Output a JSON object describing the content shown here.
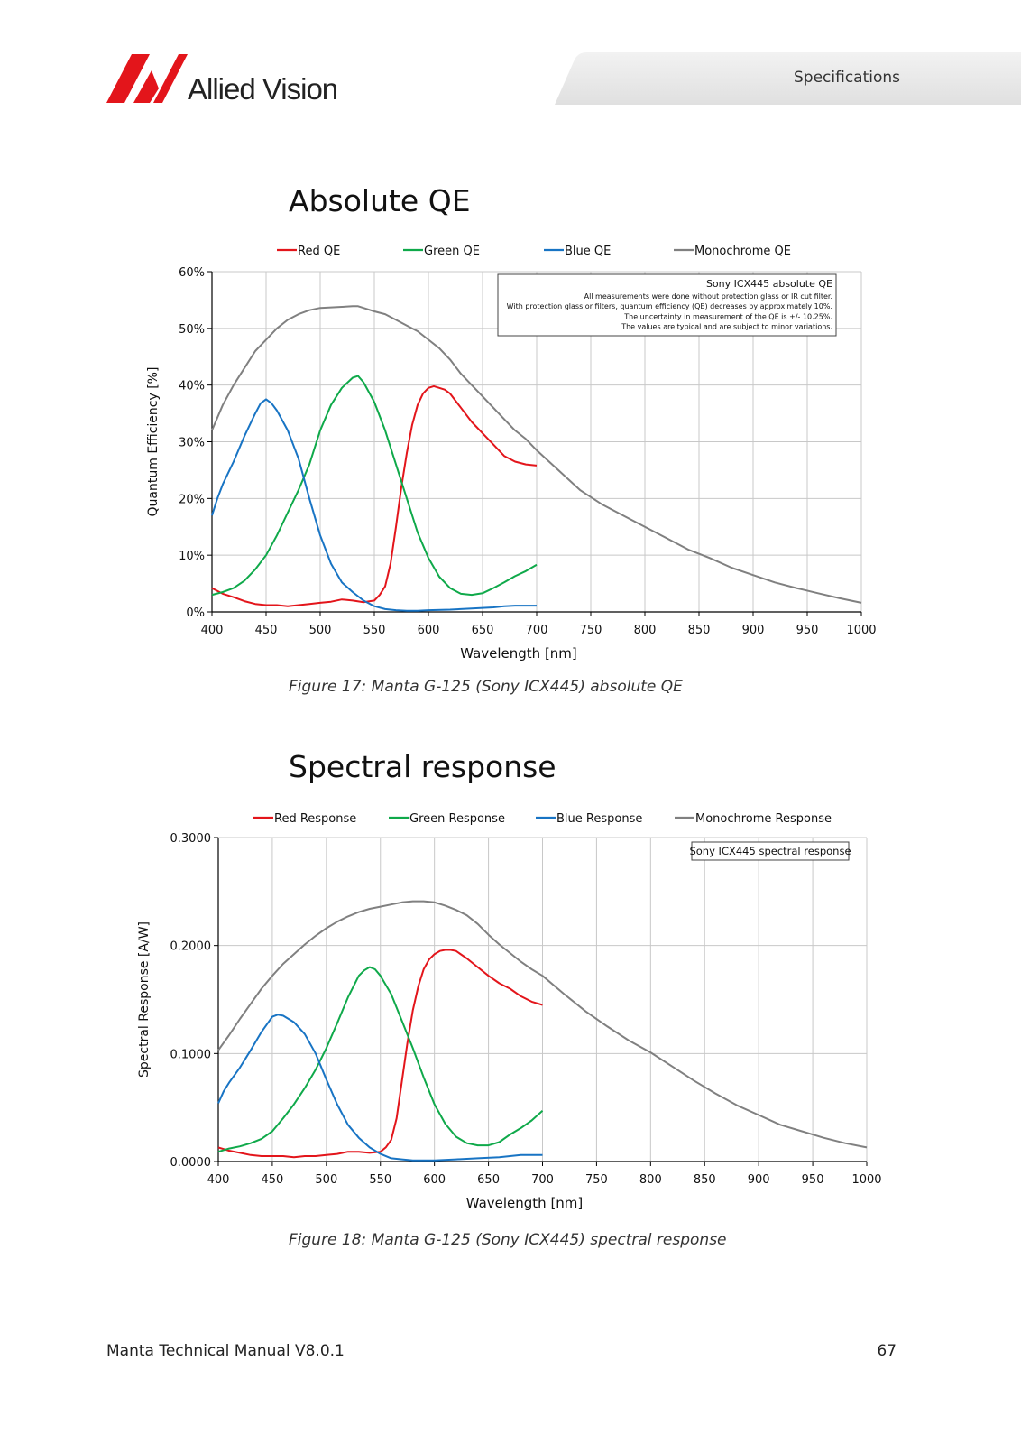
{
  "header": {
    "logo_text": "Allied Vision",
    "section_label": "Specifications",
    "brand_color": "#e3151b"
  },
  "sections": [
    {
      "heading": "Absolute QE",
      "caption": "Figure 17: Manta G-125 (Sony ICX445) absolute QE"
    },
    {
      "heading": "Spectral response",
      "caption": "Figure 18: Manta G-125 (Sony ICX445) spectral response"
    }
  ],
  "footer": {
    "left": "Manta Technical Manual V8.0.1",
    "right": "67"
  },
  "chart_data": [
    {
      "type": "line",
      "xlabel": "Wavelength [nm]",
      "ylabel": "Quantum Efficiency [%]",
      "xlim": [
        400,
        1000
      ],
      "ylim": [
        0,
        60
      ],
      "xticks": [
        "400",
        "450",
        "500",
        "550",
        "600",
        "650",
        "700",
        "750",
        "800",
        "850",
        "900",
        "950",
        "1000"
      ],
      "yticks": [
        "0%",
        "10%",
        "20%",
        "30%",
        "40%",
        "50%",
        "60%"
      ],
      "grid": true,
      "legend_placement": "top",
      "annotation": {
        "title": "Sony ICX445 absolute QE",
        "lines": [
          "All measurements were done without protection glass or IR cut filter.",
          "With protection glass or filters, quantum efficiency (QE) decreases by approximately 10%.",
          "The uncertainty in measurement of the QE is +/- 10.25%.",
          "The values are typical and are subject to minor variations."
        ]
      },
      "series": [
        {
          "name": "Red QE",
          "color": "#e3151b",
          "x": [
            400,
            410,
            420,
            430,
            440,
            450,
            460,
            470,
            480,
            490,
            500,
            510,
            520,
            530,
            540,
            550,
            555,
            560,
            565,
            570,
            575,
            580,
            585,
            590,
            595,
            600,
            605,
            610,
            615,
            620,
            630,
            640,
            650,
            660,
            670,
            680,
            690,
            700
          ],
          "y": [
            4.2,
            3.2,
            2.6,
            1.9,
            1.4,
            1.2,
            1.2,
            1.0,
            1.2,
            1.4,
            1.6,
            1.8,
            2.2,
            2.0,
            1.7,
            2.0,
            3.0,
            4.5,
            8.5,
            15,
            22,
            28,
            33,
            36.5,
            38.5,
            39.5,
            39.8,
            39.5,
            39.2,
            38.5,
            36,
            33.5,
            31.5,
            29.5,
            27.5,
            26.5,
            26,
            25.8
          ]
        },
        {
          "name": "Green QE",
          "color": "#0fa94a",
          "x": [
            400,
            410,
            420,
            430,
            440,
            450,
            460,
            470,
            480,
            490,
            500,
            510,
            520,
            530,
            535,
            540,
            550,
            560,
            570,
            580,
            590,
            600,
            610,
            620,
            630,
            640,
            650,
            660,
            670,
            680,
            690,
            700
          ],
          "y": [
            3.0,
            3.5,
            4.2,
            5.5,
            7.5,
            10,
            13.5,
            17.5,
            21.5,
            26,
            32,
            36.5,
            39.5,
            41.3,
            41.6,
            40.5,
            37,
            32,
            26,
            20,
            14,
            9.5,
            6.2,
            4.2,
            3.2,
            3.0,
            3.3,
            4.2,
            5.2,
            6.3,
            7.2,
            8.3
          ]
        },
        {
          "name": "Blue QE",
          "color": "#1874c4",
          "x": [
            400,
            405,
            410,
            420,
            430,
            440,
            445,
            450,
            455,
            460,
            470,
            480,
            490,
            500,
            510,
            520,
            530,
            540,
            550,
            560,
            570,
            580,
            590,
            600,
            620,
            640,
            660,
            670,
            680,
            700
          ],
          "y": [
            17,
            20,
            22.5,
            26.5,
            31,
            35,
            36.8,
            37.5,
            36.8,
            35.5,
            32,
            27,
            20,
            13.5,
            8.5,
            5.2,
            3.5,
            2.0,
            1.0,
            0.5,
            0.3,
            0.2,
            0.2,
            0.3,
            0.4,
            0.6,
            0.8,
            1.0,
            1.1,
            1.1
          ]
        },
        {
          "name": "Monochrome QE",
          "color": "#808080",
          "x": [
            400,
            410,
            420,
            430,
            440,
            450,
            460,
            470,
            480,
            490,
            500,
            510,
            520,
            530,
            535,
            540,
            550,
            560,
            570,
            580,
            590,
            600,
            610,
            620,
            630,
            640,
            650,
            660,
            670,
            680,
            690,
            700,
            720,
            740,
            760,
            780,
            800,
            820,
            840,
            860,
            880,
            900,
            920,
            940,
            960,
            980,
            1000
          ],
          "y": [
            32,
            36.5,
            40,
            43,
            46,
            48,
            50,
            51.5,
            52.5,
            53.2,
            53.6,
            53.7,
            53.8,
            53.9,
            53.9,
            53.6,
            53,
            52.5,
            51.5,
            50.5,
            49.5,
            48,
            46.5,
            44.5,
            42,
            40,
            38,
            36,
            34,
            32,
            30.5,
            28.5,
            25,
            21.5,
            19,
            17,
            15,
            13,
            11,
            9.5,
            7.8,
            6.5,
            5.2,
            4.2,
            3.3,
            2.4,
            1.6
          ]
        }
      ]
    },
    {
      "type": "line",
      "xlabel": "Wavelength [nm]",
      "ylabel": "Spectral Response [A/W]",
      "xlim": [
        400,
        1000
      ],
      "ylim": [
        0,
        0.3
      ],
      "xticks": [
        "400",
        "450",
        "500",
        "550",
        "600",
        "650",
        "700",
        "750",
        "800",
        "850",
        "900",
        "950",
        "1000"
      ],
      "yticks": [
        "0.0000",
        "0.1000",
        "0.2000",
        "0.3000"
      ],
      "grid": true,
      "legend_placement": "top",
      "annotation": {
        "title": "Sony ICX445 spectral response",
        "lines": []
      },
      "series": [
        {
          "name": "Red Response",
          "color": "#e3151b",
          "x": [
            400,
            410,
            420,
            430,
            440,
            450,
            460,
            470,
            480,
            490,
            500,
            510,
            520,
            530,
            540,
            550,
            555,
            560,
            565,
            570,
            575,
            580,
            585,
            590,
            595,
            600,
            605,
            610,
            615,
            620,
            630,
            640,
            650,
            660,
            670,
            680,
            690,
            700
          ],
          "y": [
            0.013,
            0.01,
            0.008,
            0.006,
            0.005,
            0.005,
            0.005,
            0.004,
            0.005,
            0.005,
            0.006,
            0.007,
            0.009,
            0.009,
            0.008,
            0.009,
            0.013,
            0.02,
            0.04,
            0.075,
            0.11,
            0.14,
            0.162,
            0.178,
            0.187,
            0.192,
            0.195,
            0.196,
            0.196,
            0.195,
            0.188,
            0.18,
            0.172,
            0.165,
            0.16,
            0.153,
            0.148,
            0.145
          ]
        },
        {
          "name": "Green Response",
          "color": "#0fa94a",
          "x": [
            400,
            410,
            420,
            430,
            440,
            450,
            460,
            470,
            480,
            490,
            500,
            510,
            520,
            530,
            535,
            540,
            545,
            550,
            560,
            570,
            580,
            590,
            600,
            610,
            620,
            630,
            640,
            650,
            660,
            670,
            680,
            690,
            700
          ],
          "y": [
            0.009,
            0.012,
            0.014,
            0.017,
            0.021,
            0.028,
            0.04,
            0.053,
            0.068,
            0.085,
            0.105,
            0.128,
            0.152,
            0.172,
            0.177,
            0.18,
            0.178,
            0.172,
            0.155,
            0.13,
            0.105,
            0.078,
            0.053,
            0.035,
            0.023,
            0.017,
            0.015,
            0.015,
            0.018,
            0.025,
            0.031,
            0.038,
            0.047
          ]
        },
        {
          "name": "Blue Response",
          "color": "#1874c4",
          "x": [
            400,
            405,
            410,
            420,
            430,
            440,
            450,
            455,
            460,
            470,
            480,
            490,
            500,
            510,
            520,
            530,
            540,
            550,
            560,
            570,
            580,
            590,
            600,
            620,
            640,
            660,
            670,
            680,
            700
          ],
          "y": [
            0.054,
            0.065,
            0.073,
            0.087,
            0.103,
            0.12,
            0.134,
            0.136,
            0.135,
            0.129,
            0.118,
            0.1,
            0.076,
            0.053,
            0.034,
            0.022,
            0.013,
            0.007,
            0.003,
            0.002,
            0.001,
            0.001,
            0.001,
            0.002,
            0.003,
            0.004,
            0.005,
            0.006,
            0.006
          ]
        },
        {
          "name": "Monochrome Response",
          "color": "#808080",
          "x": [
            400,
            410,
            420,
            430,
            440,
            450,
            460,
            470,
            480,
            490,
            500,
            510,
            520,
            530,
            540,
            550,
            560,
            570,
            580,
            590,
            600,
            610,
            620,
            630,
            640,
            650,
            660,
            670,
            680,
            690,
            700,
            720,
            740,
            760,
            780,
            800,
            820,
            840,
            860,
            880,
            900,
            920,
            940,
            960,
            980,
            1000
          ],
          "y": [
            0.103,
            0.117,
            0.132,
            0.146,
            0.16,
            0.172,
            0.183,
            0.192,
            0.201,
            0.209,
            0.216,
            0.222,
            0.227,
            0.231,
            0.234,
            0.236,
            0.238,
            0.24,
            0.241,
            0.241,
            0.24,
            0.237,
            0.233,
            0.228,
            0.22,
            0.21,
            0.201,
            0.193,
            0.185,
            0.178,
            0.172,
            0.155,
            0.139,
            0.125,
            0.112,
            0.101,
            0.088,
            0.075,
            0.063,
            0.052,
            0.043,
            0.034,
            0.028,
            0.022,
            0.017,
            0.013
          ]
        }
      ]
    }
  ]
}
